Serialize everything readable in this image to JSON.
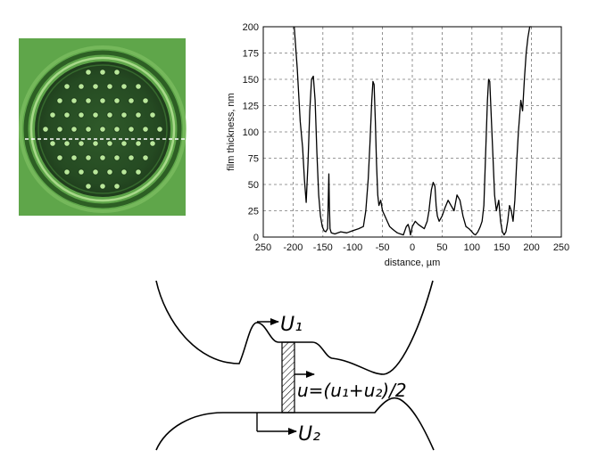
{
  "chart_data": {
    "type": "line",
    "xlabel": "distance, µm",
    "ylabel": "film thickness, nm",
    "xlim": [
      -250,
      250
    ],
    "ylim": [
      0,
      200
    ],
    "x_ticks": [
      250,
      -200,
      -150,
      -100,
      -50,
      0,
      50,
      100,
      150,
      200,
      250
    ],
    "x_tick_labels": [
      "250",
      "-200",
      "-150",
      "-100",
      "-50",
      "0",
      "50",
      "100",
      "150",
      "200",
      "250"
    ],
    "y_ticks": [
      0,
      25,
      50,
      75,
      100,
      125,
      150,
      175,
      200
    ],
    "grid": true,
    "series": [
      {
        "color": "#000000",
        "x": [
          -198,
          -193,
          -188,
          -184,
          -181,
          -178,
          -175,
          -172,
          -169,
          -166,
          -163,
          -160,
          -157,
          -154,
          -151,
          -148,
          -145,
          -142,
          -140,
          -139,
          -138,
          -136,
          -130,
          -120,
          -110,
          -100,
          -90,
          -82,
          -78,
          -74,
          -71,
          -68,
          -66,
          -64,
          -62,
          -60,
          -58,
          -56,
          -53,
          -50,
          -46,
          -42,
          -38,
          -34,
          -30,
          -25,
          -20,
          -15,
          -10,
          -7,
          -5,
          -3,
          0,
          5,
          10,
          15,
          20,
          25,
          28,
          30,
          32,
          35,
          38,
          40,
          42,
          45,
          50,
          55,
          60,
          65,
          70,
          75,
          80,
          85,
          90,
          95,
          100,
          103,
          106,
          110,
          114,
          117,
          120,
          123,
          126,
          128,
          130,
          132,
          135,
          138,
          141,
          145,
          148,
          151,
          154,
          157,
          160,
          163,
          166,
          169,
          172,
          175,
          178,
          182,
          185,
          188,
          191,
          194,
          197,
          200
        ],
        "y": [
          200,
          160,
          110,
          85,
          55,
          33,
          70,
          120,
          150,
          153,
          130,
          80,
          40,
          20,
          10,
          6,
          5,
          8,
          60,
          30,
          8,
          4,
          3,
          5,
          4,
          6,
          8,
          10,
          25,
          55,
          90,
          130,
          148,
          145,
          110,
          70,
          40,
          30,
          35,
          25,
          20,
          15,
          10,
          8,
          6,
          4,
          3,
          2,
          10,
          12,
          8,
          2,
          10,
          15,
          12,
          10,
          8,
          15,
          25,
          35,
          45,
          52,
          48,
          30,
          20,
          15,
          20,
          28,
          35,
          30,
          25,
          40,
          35,
          20,
          10,
          8,
          5,
          3,
          2,
          5,
          10,
          15,
          30,
          80,
          130,
          150,
          148,
          120,
          80,
          40,
          25,
          35,
          15,
          5,
          2,
          5,
          15,
          30,
          25,
          15,
          35,
          70,
          100,
          130,
          120,
          150,
          175,
          190,
          200,
          200
        ]
      }
    ]
  },
  "diagram": {
    "labels": {
      "u1": "U₁",
      "u2": "U₂",
      "mean": "u=(u₁+u₂)/2"
    }
  }
}
